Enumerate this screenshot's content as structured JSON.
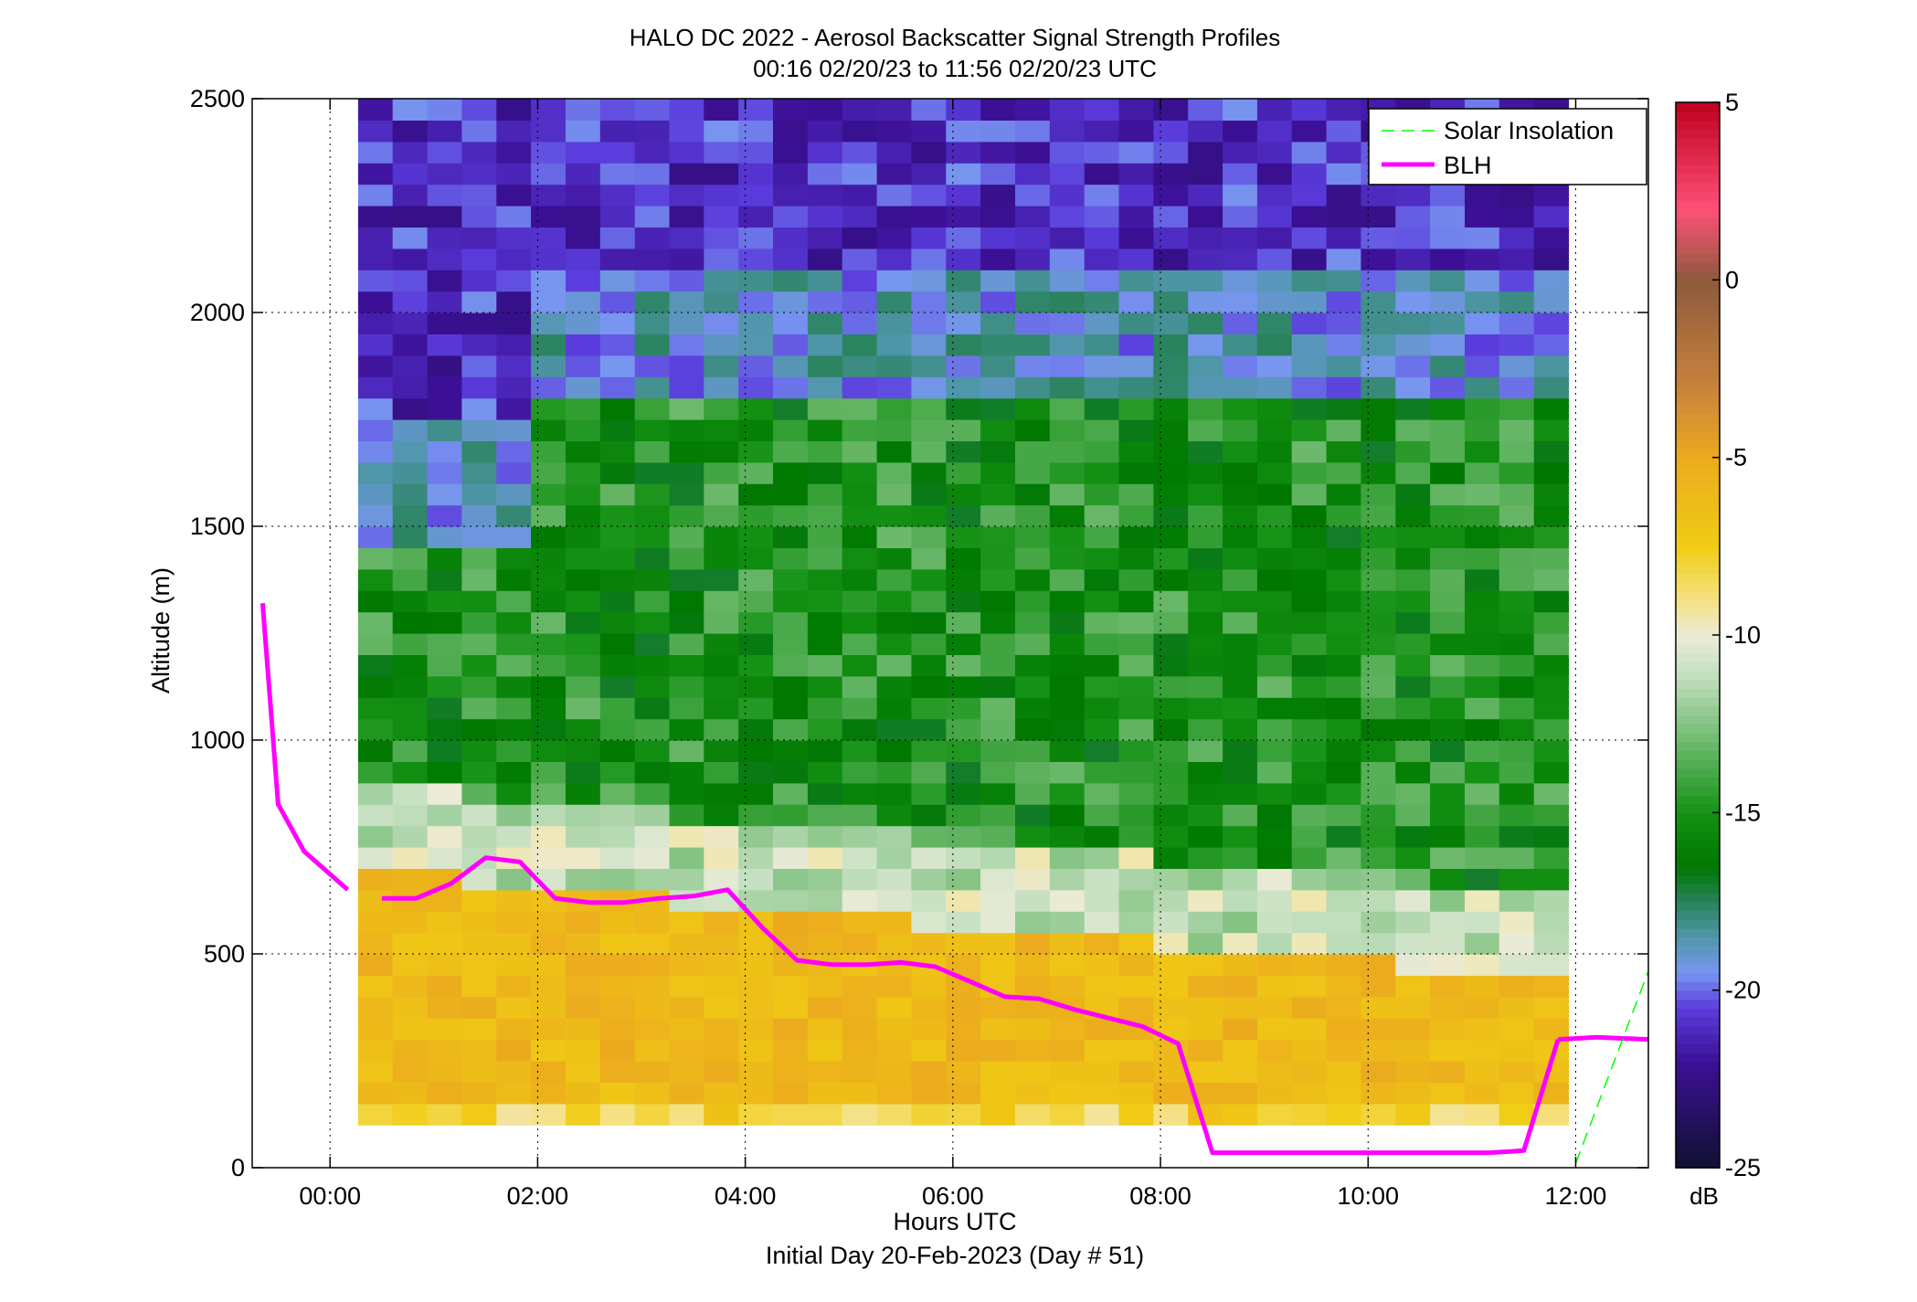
{
  "chart_data": {
    "type": "heatmap",
    "title": "HALO DC 2022 - Aerosol Backscatter Signal Strength Profiles",
    "subtitle": "00:16 02/20/23 to 11:56 02/20/23  UTC",
    "xlabel": "Hours UTC",
    "xlabel2": "Initial Day 20-Feb-2023 (Day # 51)",
    "ylabel": "Altitude (m)",
    "xlim": [
      -0.75,
      12.7
    ],
    "ylim": [
      0,
      2500
    ],
    "x_ticks": [
      0,
      2,
      4,
      6,
      8,
      10,
      12
    ],
    "x_tick_labels": [
      "00:00",
      "02:00",
      "04:00",
      "06:00",
      "08:00",
      "10:00",
      "12:00"
    ],
    "y_ticks": [
      0,
      500,
      1000,
      1500,
      2000,
      2500
    ],
    "y_tick_labels": [
      "0",
      "500",
      "1000",
      "1500",
      "2000",
      "2500"
    ],
    "grid": true,
    "legend_position": "top-right",
    "colorbar": {
      "label": "dB",
      "range": [
        -25,
        5
      ],
      "ticks": [
        5,
        0,
        -5,
        -10,
        -15,
        -20,
        -25
      ],
      "tick_labels": [
        "5",
        "0",
        "-5",
        "-10",
        "-15",
        "-20",
        "-25"
      ]
    },
    "heatmap": {
      "x_range_hours": [
        0.27,
        11.93
      ],
      "y_range_m": [
        100,
        2500
      ],
      "description_values_db": {
        "near_surface_band": -6,
        "boundary_layer": -6,
        "transition_top": -11,
        "mid_layer": -15,
        "upper_layer": -21
      }
    },
    "series": [
      {
        "name": "BLH",
        "color": "#ff00ff",
        "segments": [
          {
            "x": [
              -0.65,
              -0.5,
              -0.25,
              0.17
            ],
            "y": [
              1320,
              850,
              740,
              650
            ]
          },
          {
            "x": [
              0.5,
              0.83,
              1.17,
              1.5,
              1.83,
              2.17,
              2.5,
              2.83,
              3.17,
              3.5,
              3.83,
              4.17,
              4.5,
              4.83,
              5.17,
              5.5,
              5.83,
              6.17,
              6.5,
              6.83,
              7.17,
              7.5,
              7.83,
              8.17,
              8.5,
              8.83,
              9.17,
              9.5,
              9.83,
              10.17,
              10.5,
              10.83,
              11.17,
              11.5,
              11.83
            ],
            "y": [
              630,
              630,
              665,
              725,
              715,
              630,
              620,
              620,
              630,
              635,
              650,
              560,
              485,
              475,
              475,
              480,
              470,
              435,
              400,
              395,
              370,
              350,
              330,
              290,
              35,
              35,
              35,
              35,
              35,
              35,
              35,
              35,
              35,
              40,
              300
            ]
          },
          {
            "x": [
              11.83,
              12.2,
              12.7
            ],
            "y": [
              300,
              305,
              300
            ]
          }
        ]
      },
      {
        "name": "Solar Insolation",
        "color": "#00ff00",
        "style": "dashed",
        "segments": [
          {
            "x": [
              12.0,
              12.7
            ],
            "y": [
              10,
              460
            ]
          }
        ]
      }
    ]
  }
}
